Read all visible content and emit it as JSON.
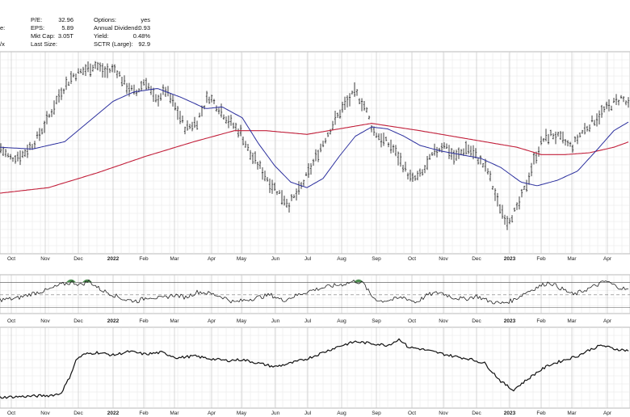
{
  "header": {
    "row1": {
      "pe_label": "P/E:",
      "pe_value": "32.96",
      "options_label": "Options:",
      "options_value": "yes"
    },
    "row2": {
      "left_fragment": "e:",
      "eps_label": "EPS:",
      "eps_value": "5.89",
      "annual_div_label": "Annual Dividend:",
      "annual_div_value": "0.93"
    },
    "row3": {
      "left_fragment": "",
      "mktcap_label": "Mkt Cap:",
      "mktcap_value": "3.05T",
      "yield_label": "Yield:",
      "yield_value": "0.48%"
    },
    "row4": {
      "left_fragment": "/x",
      "lastsize_label": "Last Size:",
      "lastsize_value": "",
      "sctr_label": "SCTR (Large):",
      "sctr_value": "92.9"
    }
  },
  "chart_data": [
    {
      "type": "ohlc",
      "panel": "price",
      "x_axis_labels": [
        "Oct",
        "Nov",
        "Dec",
        "2022",
        "Feb",
        "Mar",
        "Apr",
        "May",
        "Jun",
        "Jul",
        "Aug",
        "Sep",
        "Oct",
        "Nov",
        "Dec",
        "2023",
        "Feb",
        "Mar",
        "Apr"
      ],
      "bold_labels": [
        "2022",
        "2023"
      ],
      "grid": true,
      "series": [
        {
          "name": "",
          "role": "price",
          "color": "#111111"
        },
        {
          "name": "",
          "role": "ma50",
          "color": "#2b2f9e"
        },
        {
          "name": "",
          "role": "ma200",
          "color": "#c2203b"
        }
      ],
      "price_path": [
        [
          0,
          58
        ],
        [
          12,
          52
        ],
        [
          28,
          54
        ],
        [
          45,
          62
        ],
        [
          60,
          74
        ],
        [
          75,
          88
        ],
        [
          90,
          97
        ],
        [
          105,
          100
        ],
        [
          118,
          103
        ],
        [
          130,
          99
        ],
        [
          143,
          101
        ],
        [
          155,
          92
        ],
        [
          168,
          87
        ],
        [
          180,
          95
        ],
        [
          192,
          83
        ],
        [
          205,
          89
        ],
        [
          218,
          79
        ],
        [
          230,
          68
        ],
        [
          244,
          72
        ],
        [
          258,
          86
        ],
        [
          272,
          79
        ],
        [
          284,
          72
        ],
        [
          298,
          66
        ],
        [
          310,
          54
        ],
        [
          322,
          47
        ],
        [
          334,
          39
        ],
        [
          346,
          33
        ],
        [
          358,
          27
        ],
        [
          370,
          34
        ],
        [
          382,
          44
        ],
        [
          395,
          56
        ],
        [
          410,
          69
        ],
        [
          425,
          80
        ],
        [
          440,
          88
        ],
        [
          452,
          80
        ],
        [
          462,
          67
        ],
        [
          474,
          62
        ],
        [
          486,
          58
        ],
        [
          498,
          49
        ],
        [
          510,
          40
        ],
        [
          522,
          43
        ],
        [
          536,
          54
        ],
        [
          550,
          60
        ],
        [
          563,
          52
        ],
        [
          578,
          58
        ],
        [
          590,
          53
        ],
        [
          604,
          45
        ],
        [
          616,
          28
        ],
        [
          628,
          18
        ],
        [
          640,
          24
        ],
        [
          652,
          38
        ],
        [
          662,
          52
        ],
        [
          672,
          62
        ],
        [
          684,
          65
        ],
        [
          696,
          62
        ],
        [
          708,
          58
        ],
        [
          720,
          66
        ],
        [
          734,
          72
        ],
        [
          748,
          78
        ],
        [
          760,
          82
        ],
        [
          770,
          85
        ],
        [
          779,
          80
        ]
      ],
      "ma50_path": [
        [
          0,
          58
        ],
        [
          40,
          57
        ],
        [
          80,
          61
        ],
        [
          110,
          72
        ],
        [
          140,
          83
        ],
        [
          165,
          88
        ],
        [
          195,
          90
        ],
        [
          225,
          85
        ],
        [
          255,
          79
        ],
        [
          275,
          80
        ],
        [
          300,
          74
        ],
        [
          320,
          60
        ],
        [
          340,
          48
        ],
        [
          360,
          39
        ],
        [
          380,
          36
        ],
        [
          400,
          41
        ],
        [
          420,
          53
        ],
        [
          440,
          64
        ],
        [
          460,
          69
        ],
        [
          480,
          68
        ],
        [
          500,
          64
        ],
        [
          520,
          59
        ],
        [
          545,
          56
        ],
        [
          570,
          54
        ],
        [
          595,
          52
        ],
        [
          620,
          47
        ],
        [
          645,
          39
        ],
        [
          665,
          37
        ],
        [
          690,
          40
        ],
        [
          715,
          45
        ],
        [
          740,
          57
        ],
        [
          760,
          67
        ],
        [
          779,
          72
        ]
      ],
      "ma200_path": [
        [
          0,
          33
        ],
        [
          60,
          36
        ],
        [
          120,
          44
        ],
        [
          180,
          53
        ],
        [
          240,
          61
        ],
        [
          290,
          67
        ],
        [
          330,
          67
        ],
        [
          380,
          65
        ],
        [
          420,
          68
        ],
        [
          460,
          71
        ],
        [
          490,
          69
        ],
        [
          520,
          67
        ],
        [
          560,
          64
        ],
        [
          600,
          61
        ],
        [
          640,
          58
        ],
        [
          670,
          54
        ],
        [
          700,
          54
        ],
        [
          730,
          55
        ],
        [
          760,
          58
        ],
        [
          779,
          61
        ]
      ]
    },
    {
      "type": "line",
      "panel": "indicator",
      "grid": true,
      "series": [
        {
          "name": "",
          "color": "#222222"
        }
      ],
      "path": [
        [
          0,
          42
        ],
        [
          20,
          44
        ],
        [
          40,
          52
        ],
        [
          60,
          58
        ],
        [
          75,
          66
        ],
        [
          90,
          70
        ],
        [
          100,
          66
        ],
        [
          110,
          72
        ],
        [
          125,
          58
        ],
        [
          140,
          50
        ],
        [
          155,
          42
        ],
        [
          170,
          40
        ],
        [
          185,
          47
        ],
        [
          200,
          44
        ],
        [
          215,
          50
        ],
        [
          230,
          46
        ],
        [
          245,
          55
        ],
        [
          260,
          52
        ],
        [
          275,
          47
        ],
        [
          290,
          38
        ],
        [
          305,
          42
        ],
        [
          320,
          46
        ],
        [
          335,
          50
        ],
        [
          350,
          41
        ],
        [
          365,
          48
        ],
        [
          380,
          55
        ],
        [
          395,
          60
        ],
        [
          410,
          64
        ],
        [
          425,
          67
        ],
        [
          440,
          72
        ],
        [
          450,
          68
        ],
        [
          460,
          48
        ],
        [
          470,
          40
        ],
        [
          485,
          42
        ],
        [
          500,
          46
        ],
        [
          515,
          38
        ],
        [
          530,
          50
        ],
        [
          545,
          54
        ],
        [
          560,
          46
        ],
        [
          575,
          43
        ],
        [
          590,
          48
        ],
        [
          605,
          40
        ],
        [
          620,
          36
        ],
        [
          635,
          41
        ],
        [
          650,
          53
        ],
        [
          665,
          62
        ],
        [
          680,
          70
        ],
        [
          695,
          60
        ],
        [
          710,
          50
        ],
        [
          725,
          58
        ],
        [
          740,
          66
        ],
        [
          750,
          72
        ],
        [
          762,
          64
        ],
        [
          779,
          57
        ]
      ],
      "overbought_fills_at": [
        88,
        108,
        444
      ]
    },
    {
      "type": "line",
      "panel": "lower",
      "grid": true,
      "series": [
        {
          "name": "",
          "color": "#111111"
        }
      ],
      "path": [
        [
          0,
          12
        ],
        [
          30,
          13
        ],
        [
          60,
          14
        ],
        [
          75,
          16
        ],
        [
          85,
          32
        ],
        [
          95,
          55
        ],
        [
          105,
          60
        ],
        [
          120,
          62
        ],
        [
          140,
          59
        ],
        [
          160,
          63
        ],
        [
          180,
          60
        ],
        [
          200,
          62
        ],
        [
          220,
          56
        ],
        [
          240,
          58
        ],
        [
          260,
          55
        ],
        [
          280,
          53
        ],
        [
          300,
          54
        ],
        [
          320,
          50
        ],
        [
          340,
          46
        ],
        [
          360,
          50
        ],
        [
          380,
          55
        ],
        [
          400,
          62
        ],
        [
          420,
          69
        ],
        [
          440,
          74
        ],
        [
          460,
          72
        ],
        [
          480,
          70
        ],
        [
          495,
          77
        ],
        [
          505,
          68
        ],
        [
          520,
          66
        ],
        [
          540,
          62
        ],
        [
          560,
          58
        ],
        [
          580,
          55
        ],
        [
          600,
          50
        ],
        [
          620,
          30
        ],
        [
          635,
          20
        ],
        [
          650,
          30
        ],
        [
          665,
          40
        ],
        [
          680,
          48
        ],
        [
          700,
          54
        ],
        [
          715,
          58
        ],
        [
          730,
          65
        ],
        [
          745,
          70
        ],
        [
          760,
          66
        ],
        [
          779,
          64
        ]
      ]
    }
  ]
}
